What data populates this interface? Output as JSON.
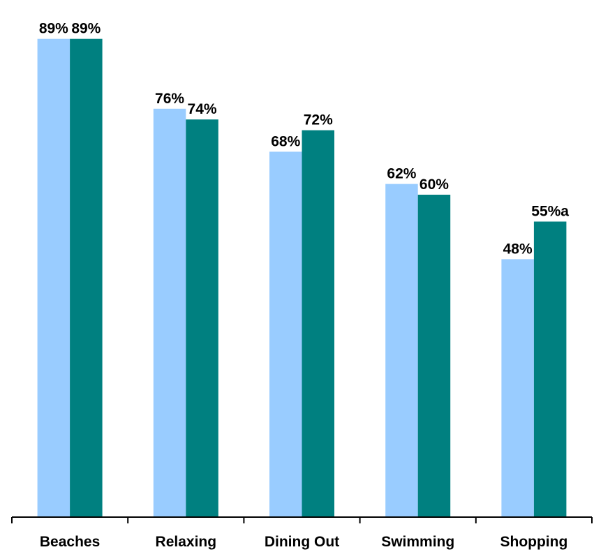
{
  "chart_data": {
    "type": "bar",
    "categories": [
      "Beaches",
      "Relaxing",
      "Dining Out",
      "Swimming",
      "Shopping"
    ],
    "series": [
      {
        "color": "#99ccff",
        "values": [
          89,
          76,
          68,
          62,
          48
        ],
        "labels": [
          "89%",
          "76%",
          "68%",
          "62%",
          "48%"
        ]
      },
      {
        "color": "#008080",
        "values": [
          89,
          74,
          72,
          60,
          55
        ],
        "labels": [
          "89%",
          "74%",
          "72%",
          "60%",
          "55%a"
        ]
      }
    ],
    "ylim": [
      0,
      100
    ],
    "grid": false,
    "legend": "none",
    "title": "",
    "xlabel": "",
    "ylabel": ""
  }
}
